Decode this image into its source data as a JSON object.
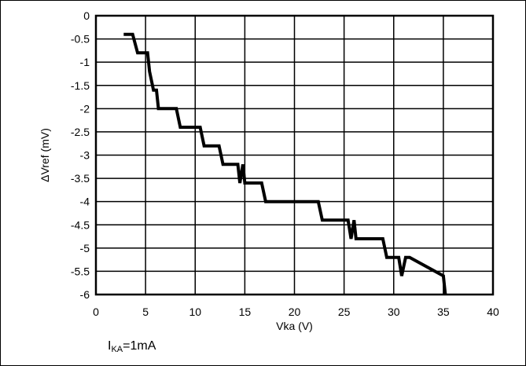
{
  "chart_data": {
    "type": "line",
    "title": "",
    "xlabel": "Vka (V)",
    "ylabel": "ΔVref (mV)",
    "xlim": [
      0,
      40
    ],
    "ylim": [
      -6,
      0
    ],
    "x_ticks": [
      0,
      5,
      10,
      15,
      20,
      25,
      30,
      35,
      40
    ],
    "y_ticks": [
      0,
      -0.5,
      -1,
      -1.5,
      -2,
      -2.5,
      -3,
      -3.5,
      -4,
      -4.5,
      -5,
      -5.5,
      -6
    ],
    "grid": true,
    "legend": "none",
    "series": [
      {
        "color": "#000000",
        "x": [
          2.8,
          3.7,
          4.2,
          5.2,
          5.4,
          5.8,
          6.1,
          6.3,
          6.6,
          8.1,
          8.5,
          10.5,
          10.9,
          12.4,
          12.8,
          14.3,
          14.5,
          14.8,
          15.0,
          16.7,
          17.1,
          22.4,
          22.8,
          25.4,
          25.7,
          26.0,
          26.2,
          28.9,
          29.3,
          30.5,
          30.8,
          31.2,
          31.6,
          35.0,
          35.2
        ],
        "y": [
          -0.4,
          -0.4,
          -0.8,
          -0.8,
          -1.2,
          -1.6,
          -1.6,
          -2.0,
          -2.0,
          -2.0,
          -2.4,
          -2.4,
          -2.8,
          -2.8,
          -3.2,
          -3.2,
          -3.6,
          -3.2,
          -3.6,
          -3.6,
          -4.0,
          -4.0,
          -4.4,
          -4.4,
          -4.8,
          -4.4,
          -4.8,
          -4.8,
          -5.2,
          -5.2,
          -5.6,
          -5.2,
          -5.2,
          -5.6,
          -6.0
        ]
      }
    ]
  },
  "footer": {
    "condition_base": "I",
    "condition_sub": "KA",
    "condition_value": "=1mA"
  }
}
